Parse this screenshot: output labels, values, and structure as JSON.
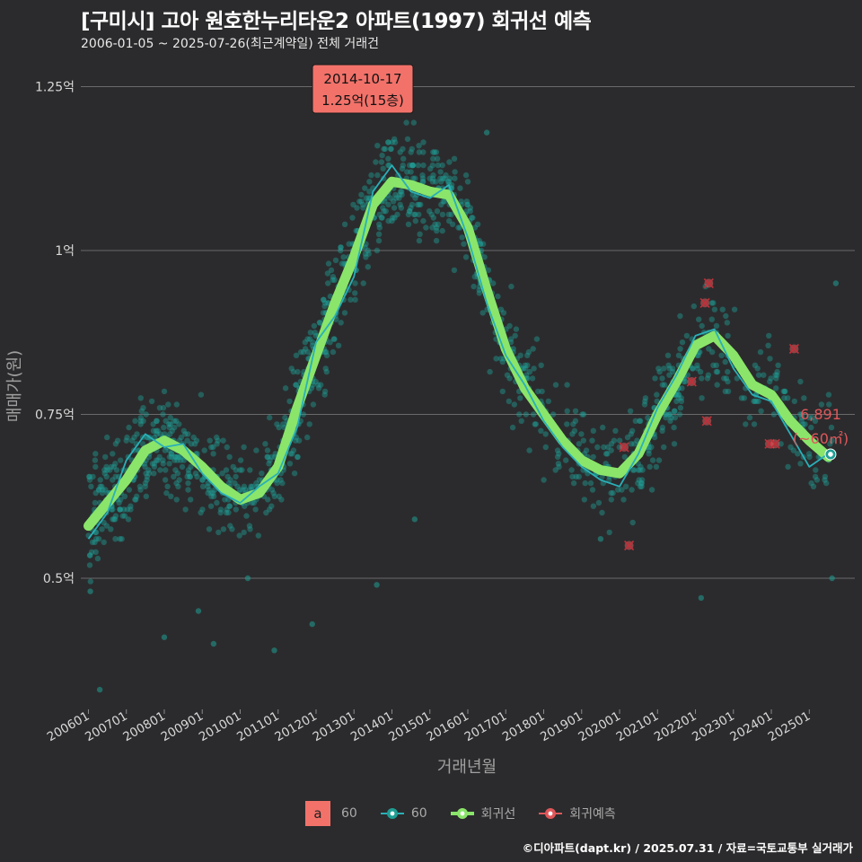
{
  "header": {
    "title": "[구미시] 고아 원호한누리타운2 아파트(1997) 회귀선 예측",
    "subtitle": "2006-01-05 ~ 2025-07-26(최근계약일) 전체 거래건"
  },
  "caption": "©디아파트(dapt.kr) / 2025.07.31 / 자료=국토교통부 실거래가",
  "legend": {
    "box_key": "a",
    "box_label": "60",
    "series_label": "60",
    "regression_label": "회귀선",
    "forecast_label": "회귀예측"
  },
  "colors": {
    "background": "#2b2b2d",
    "grid": "#6a6a6a",
    "scatter": "#1f9e94",
    "trend": "#2ab0b8",
    "regression": "#8ae56a",
    "forecast": "#e0575a",
    "annotation_bg": "#f2726a"
  },
  "chart_data": {
    "type": "scatter",
    "xlabel": "거래년월",
    "ylabel": "매매가(원)",
    "x_range": [
      2005.8,
      2026.2
    ],
    "ylim": [
      3000,
      13000
    ],
    "y_ticks": [
      5000,
      7500,
      10000,
      12500
    ],
    "y_tick_labels": [
      "0.5억",
      "0.75억",
      "1억",
      "1.25억"
    ],
    "x_tick_labels": [
      "200601",
      "200701",
      "200801",
      "200901",
      "201001",
      "201101",
      "201201",
      "201301",
      "201401",
      "201501",
      "201601",
      "201701",
      "201801",
      "201901",
      "202001",
      "202101",
      "202201",
      "202301",
      "202401",
      "202501"
    ],
    "max_annotation": {
      "date": "2014-10-17",
      "value": 12500,
      "label_line1": "2014-10-17",
      "label_line2": "1.25억(15층)"
    },
    "last_point": {
      "year": 2025.56,
      "value": 6891,
      "label_line1": "6,891",
      "label_line2": "(~60㎡)"
    },
    "regression_line": [
      {
        "x": 2006.0,
        "y": 5800
      },
      {
        "x": 2006.5,
        "y": 6150
      },
      {
        "x": 2007.0,
        "y": 6500
      },
      {
        "x": 2007.5,
        "y": 6950
      },
      {
        "x": 2008.0,
        "y": 7100
      },
      {
        "x": 2008.5,
        "y": 6950
      },
      {
        "x": 2009.0,
        "y": 6700
      },
      {
        "x": 2009.5,
        "y": 6400
      },
      {
        "x": 2010.0,
        "y": 6200
      },
      {
        "x": 2010.5,
        "y": 6300
      },
      {
        "x": 2011.0,
        "y": 6700
      },
      {
        "x": 2011.5,
        "y": 7600
      },
      {
        "x": 2012.0,
        "y": 8400
      },
      {
        "x": 2012.5,
        "y": 9200
      },
      {
        "x": 2013.0,
        "y": 9900
      },
      {
        "x": 2013.5,
        "y": 10700
      },
      {
        "x": 2014.0,
        "y": 11050
      },
      {
        "x": 2014.5,
        "y": 11000
      },
      {
        "x": 2015.0,
        "y": 10900
      },
      {
        "x": 2015.5,
        "y": 10850
      },
      {
        "x": 2016.0,
        "y": 10350
      },
      {
        "x": 2016.5,
        "y": 9400
      },
      {
        "x": 2017.0,
        "y": 8500
      },
      {
        "x": 2017.5,
        "y": 7900
      },
      {
        "x": 2018.0,
        "y": 7500
      },
      {
        "x": 2018.5,
        "y": 7100
      },
      {
        "x": 2019.0,
        "y": 6800
      },
      {
        "x": 2019.5,
        "y": 6650
      },
      {
        "x": 2020.0,
        "y": 6600
      },
      {
        "x": 2020.5,
        "y": 6900
      },
      {
        "x": 2021.0,
        "y": 7500
      },
      {
        "x": 2021.5,
        "y": 8000
      },
      {
        "x": 2022.0,
        "y": 8550
      },
      {
        "x": 2022.5,
        "y": 8700
      },
      {
        "x": 2023.0,
        "y": 8400
      },
      {
        "x": 2023.5,
        "y": 7950
      },
      {
        "x": 2024.0,
        "y": 7800
      },
      {
        "x": 2024.5,
        "y": 7400
      },
      {
        "x": 2025.0,
        "y": 7100
      },
      {
        "x": 2025.5,
        "y": 6850
      }
    ],
    "trend_line": [
      {
        "x": 2006.0,
        "y": 5600
      },
      {
        "x": 2006.5,
        "y": 6000
      },
      {
        "x": 2007.0,
        "y": 6800
      },
      {
        "x": 2007.5,
        "y": 7200
      },
      {
        "x": 2008.0,
        "y": 7000
      },
      {
        "x": 2008.5,
        "y": 7050
      },
      {
        "x": 2009.0,
        "y": 6600
      },
      {
        "x": 2009.5,
        "y": 6300
      },
      {
        "x": 2010.0,
        "y": 6150
      },
      {
        "x": 2010.5,
        "y": 6400
      },
      {
        "x": 2011.0,
        "y": 6600
      },
      {
        "x": 2011.5,
        "y": 7300
      },
      {
        "x": 2012.0,
        "y": 8600
      },
      {
        "x": 2012.5,
        "y": 9000
      },
      {
        "x": 2013.0,
        "y": 9600
      },
      {
        "x": 2013.5,
        "y": 10900
      },
      {
        "x": 2014.0,
        "y": 11300
      },
      {
        "x": 2014.5,
        "y": 10900
      },
      {
        "x": 2015.0,
        "y": 10800
      },
      {
        "x": 2015.5,
        "y": 11000
      },
      {
        "x": 2016.0,
        "y": 10200
      },
      {
        "x": 2016.5,
        "y": 9200
      },
      {
        "x": 2017.0,
        "y": 8400
      },
      {
        "x": 2017.5,
        "y": 7950
      },
      {
        "x": 2018.0,
        "y": 7400
      },
      {
        "x": 2018.5,
        "y": 7000
      },
      {
        "x": 2019.0,
        "y": 6700
      },
      {
        "x": 2019.5,
        "y": 6500
      },
      {
        "x": 2020.0,
        "y": 6400
      },
      {
        "x": 2020.5,
        "y": 6900
      },
      {
        "x": 2021.0,
        "y": 7600
      },
      {
        "x": 2021.5,
        "y": 8100
      },
      {
        "x": 2022.0,
        "y": 8700
      },
      {
        "x": 2022.5,
        "y": 8800
      },
      {
        "x": 2023.0,
        "y": 8200
      },
      {
        "x": 2023.5,
        "y": 7800
      },
      {
        "x": 2024.0,
        "y": 7700
      },
      {
        "x": 2024.5,
        "y": 7200
      },
      {
        "x": 2025.0,
        "y": 6700
      },
      {
        "x": 2025.5,
        "y": 6900
      }
    ],
    "forecast_points": [
      {
        "x": 2020.12,
        "y": 7000
      },
      {
        "x": 2020.25,
        "y": 5500
      },
      {
        "x": 2021.9,
        "y": 8000
      },
      {
        "x": 2022.25,
        "y": 9200
      },
      {
        "x": 2022.35,
        "y": 9500
      },
      {
        "x": 2022.3,
        "y": 7400
      },
      {
        "x": 2023.95,
        "y": 7050
      },
      {
        "x": 2024.1,
        "y": 7050
      },
      {
        "x": 2024.6,
        "y": 8500
      }
    ],
    "scatter_outliers": [
      {
        "x": 2006.05,
        "y": 4800
      },
      {
        "x": 2006.3,
        "y": 3300
      },
      {
        "x": 2008.0,
        "y": 4100
      },
      {
        "x": 2008.9,
        "y": 4500
      },
      {
        "x": 2009.3,
        "y": 4000
      },
      {
        "x": 2010.2,
        "y": 5000
      },
      {
        "x": 2010.9,
        "y": 3900
      },
      {
        "x": 2011.9,
        "y": 4300
      },
      {
        "x": 2013.6,
        "y": 4900
      },
      {
        "x": 2016.5,
        "y": 11800
      },
      {
        "x": 2022.15,
        "y": 4700
      },
      {
        "x": 2025.6,
        "y": 5000
      },
      {
        "x": 2025.7,
        "y": 9500
      },
      {
        "x": 2014.6,
        "y": 5900
      },
      {
        "x": 2019.5,
        "y": 5600
      }
    ],
    "scatter_count": 1400
  }
}
